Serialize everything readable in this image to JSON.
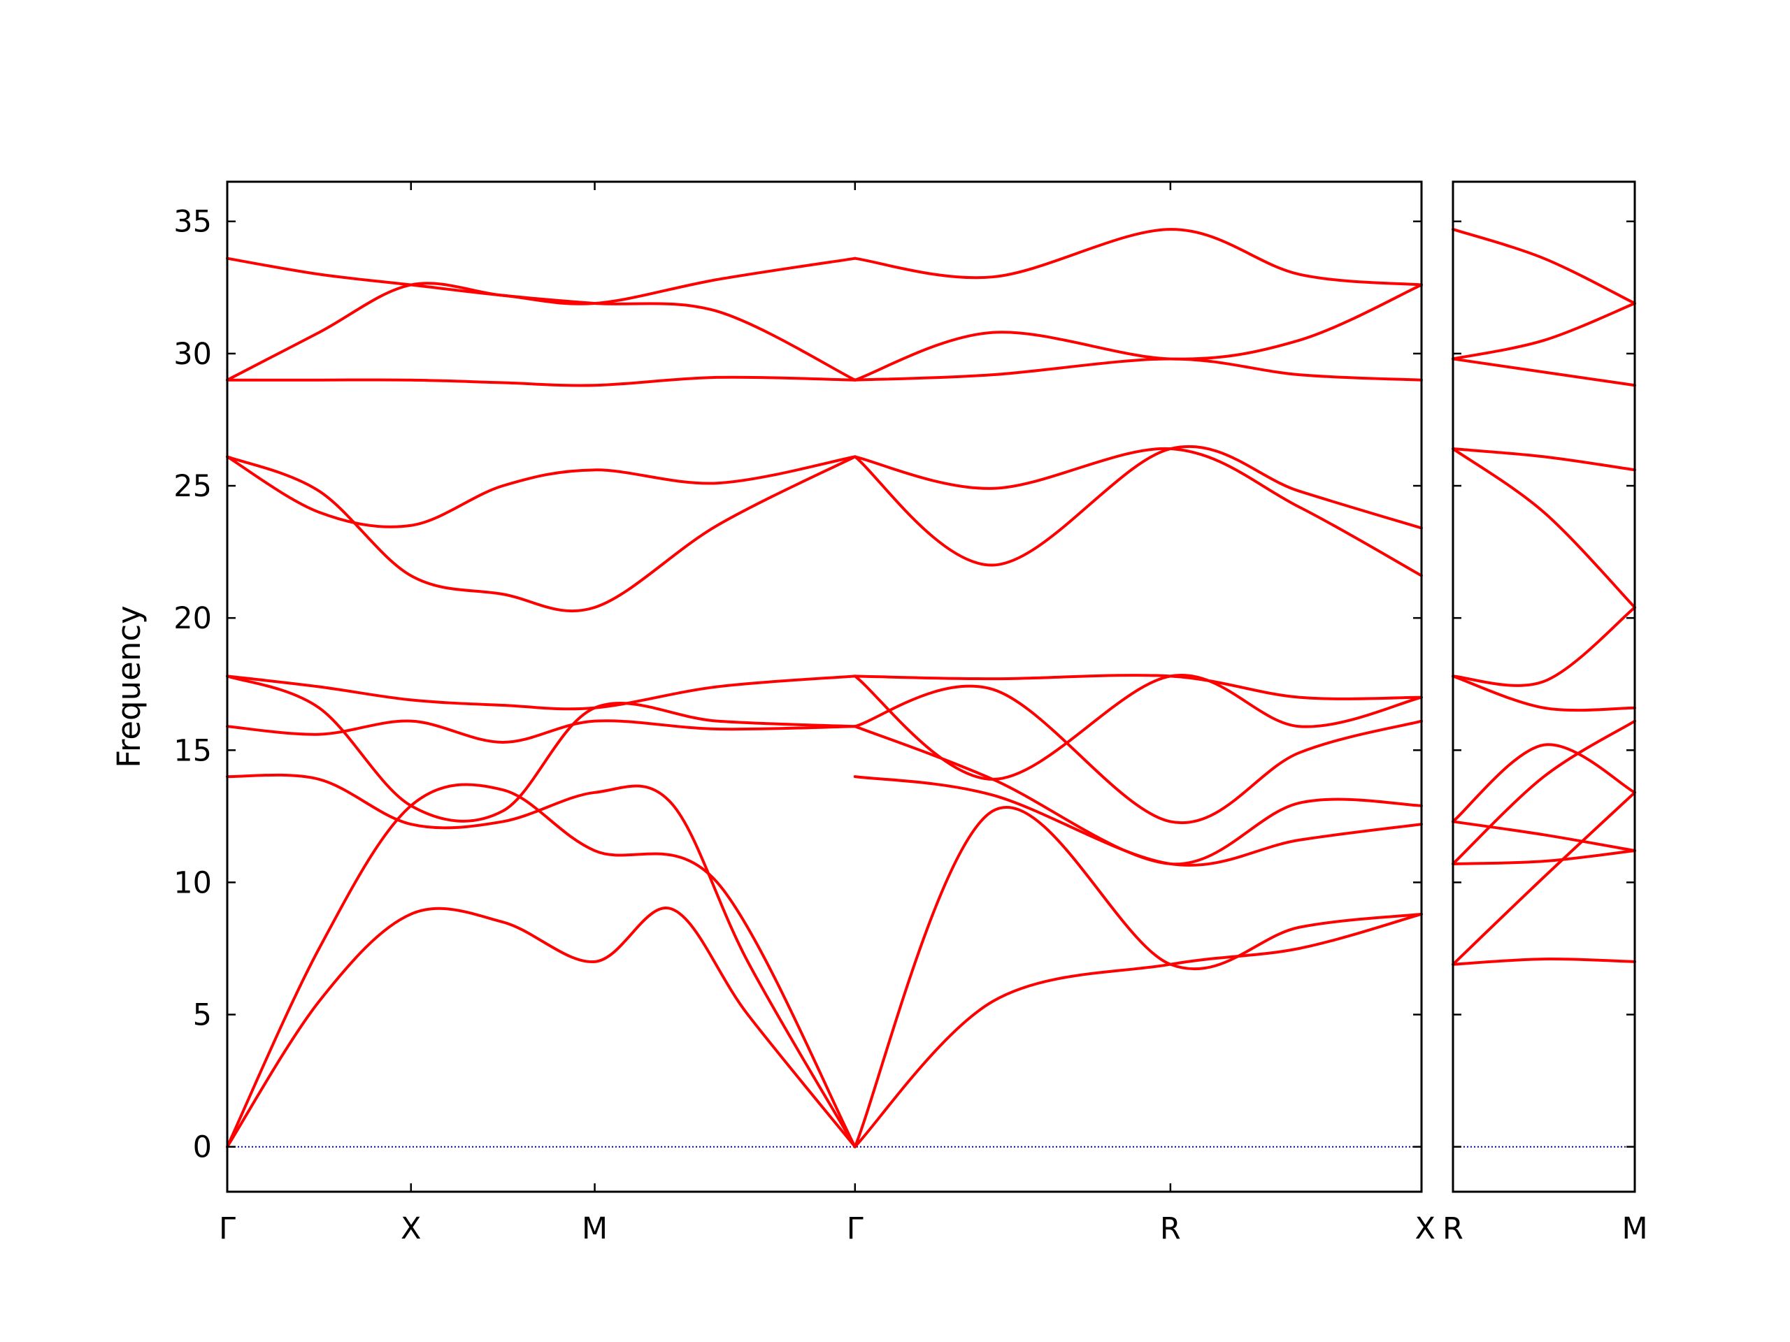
{
  "chart_data": {
    "type": "line",
    "title": "",
    "ylabel": "Frequency",
    "ylim": [
      -1.7,
      36.5
    ],
    "yticks": [
      0,
      5,
      10,
      15,
      20,
      25,
      30,
      35
    ],
    "colors": {
      "band": "#ff0000",
      "zero_line": "#0000aa"
    },
    "zero_line": true,
    "grid": false,
    "panels": [
      {
        "x_range": [
          0,
          3.9
        ],
        "special_points": [
          {
            "label": "Γ",
            "x": 0.0
          },
          {
            "label": "X",
            "x": 0.6
          },
          {
            "label": "M",
            "x": 1.2
          },
          {
            "label": "Γ",
            "x": 2.05
          },
          {
            "label": "R",
            "x": 3.08
          },
          {
            "label": "X",
            "x": 3.9
          }
        ],
        "series": [
          {
            "x": [
              0,
              0.3,
              0.6,
              0.9,
              1.2,
              1.45,
              1.7,
              2.05
            ],
            "values": [
              0,
              5.5,
              8.8,
              8.5,
              7.0,
              9.0,
              5.0,
              0
            ]
          },
          {
            "x": [
              0,
              0.3,
              0.6,
              0.9,
              1.2,
              1.6,
              2.05
            ],
            "values": [
              0,
              7.5,
              12.9,
              13.5,
              11.2,
              10.0,
              0
            ]
          },
          {
            "x": [
              0,
              0.3,
              0.6,
              0.9,
              1.2,
              1.45,
              1.7,
              2.05
            ],
            "values": [
              14.0,
              13.9,
              12.2,
              12.3,
              13.4,
              13.0,
              7.0,
              0
            ]
          },
          {
            "x": [
              0,
              0.3,
              0.6,
              0.9,
              1.2,
              1.6,
              2.05
            ],
            "values": [
              15.9,
              15.6,
              16.1,
              15.3,
              16.1,
              15.8,
              15.9
            ]
          },
          {
            "x": [
              0,
              0.3,
              0.6,
              0.9,
              1.2,
              1.6,
              2.05
            ],
            "values": [
              17.8,
              17.4,
              16.9,
              16.7,
              16.6,
              17.4,
              17.8
            ]
          },
          {
            "x": [
              0,
              0.3,
              0.6,
              0.9,
              1.2,
              1.6,
              2.05
            ],
            "values": [
              17.8,
              16.6,
              12.9,
              12.7,
              16.6,
              16.1,
              15.9
            ]
          },
          {
            "x": [
              0,
              0.3,
              0.6,
              0.9,
              1.2,
              1.6,
              2.05
            ],
            "values": [
              26.1,
              24.8,
              21.6,
              20.9,
              20.4,
              23.5,
              26.1
            ]
          },
          {
            "x": [
              0,
              0.3,
              0.6,
              0.9,
              1.2,
              1.6,
              2.05
            ],
            "values": [
              26.1,
              24.0,
              23.5,
              25.0,
              25.6,
              25.1,
              26.1
            ]
          },
          {
            "x": [
              0,
              0.3,
              0.6,
              0.9,
              1.2,
              1.6,
              2.05
            ],
            "values": [
              29.0,
              29.0,
              29.0,
              28.9,
              28.8,
              29.1,
              29.0
            ]
          },
          {
            "x": [
              0,
              0.3,
              0.6,
              0.9,
              1.2,
              1.6,
              2.05
            ],
            "values": [
              29.0,
              30.8,
              32.6,
              32.2,
              31.9,
              31.6,
              29.0
            ]
          },
          {
            "x": [
              0,
              0.3,
              0.6,
              0.9,
              1.2,
              1.6,
              2.05
            ],
            "values": [
              33.6,
              33.0,
              32.6,
              32.2,
              31.9,
              32.8,
              33.6
            ]
          },
          {
            "x": [
              2.05,
              2.5,
              3.08,
              3.5,
              3.9
            ],
            "values": [
              0,
              5.5,
              6.9,
              7.5,
              8.8
            ]
          },
          {
            "x": [
              2.05,
              2.5,
              3.08,
              3.5,
              3.9
            ],
            "values": [
              0,
              12.7,
              6.9,
              8.3,
              8.8
            ]
          },
          {
            "x": [
              2.05,
              2.5,
              3.08,
              3.5,
              3.9
            ],
            "values": [
              14.0,
              13.3,
              10.7,
              11.6,
              12.2
            ]
          },
          {
            "x": [
              2.05,
              2.5,
              3.08,
              3.5,
              3.9
            ],
            "values": [
              15.9,
              13.9,
              10.7,
              13.0,
              12.9
            ]
          },
          {
            "x": [
              2.05,
              2.5,
              3.08,
              3.5,
              3.9
            ],
            "values": [
              15.9,
              17.3,
              12.3,
              14.9,
              16.1
            ]
          },
          {
            "x": [
              2.05,
              2.5,
              3.08,
              3.5,
              3.9
            ],
            "values": [
              17.8,
              13.9,
              17.8,
              15.9,
              17.0
            ]
          },
          {
            "x": [
              2.05,
              2.5,
              3.08,
              3.5,
              3.9
            ],
            "values": [
              17.8,
              17.7,
              17.8,
              17.0,
              17.0
            ]
          },
          {
            "x": [
              2.05,
              2.5,
              3.08,
              3.5,
              3.9
            ],
            "values": [
              26.1,
              24.9,
              26.4,
              24.2,
              21.6
            ]
          },
          {
            "x": [
              2.05,
              2.5,
              3.08,
              3.5,
              3.9
            ],
            "values": [
              26.1,
              22.0,
              26.4,
              24.8,
              23.4
            ]
          },
          {
            "x": [
              2.05,
              2.5,
              3.08,
              3.5,
              3.9
            ],
            "values": [
              29.0,
              29.2,
              29.8,
              29.2,
              29.0
            ]
          },
          {
            "x": [
              2.05,
              2.5,
              3.08,
              3.5,
              3.9
            ],
            "values": [
              29.0,
              30.8,
              29.8,
              30.5,
              32.6
            ]
          },
          {
            "x": [
              2.05,
              2.5,
              3.08,
              3.5,
              3.9
            ],
            "values": [
              33.6,
              32.9,
              34.7,
              33.0,
              32.6
            ]
          }
        ]
      },
      {
        "x_range": [
          0,
          0.6
        ],
        "special_points": [
          {
            "label": "R",
            "x": 0.0
          },
          {
            "label": "M",
            "x": 0.6
          }
        ],
        "series": [
          {
            "x": [
              0,
              0.3,
              0.6
            ],
            "values": [
              6.9,
              7.1,
              7.0
            ]
          },
          {
            "x": [
              0,
              0.3,
              0.6
            ],
            "values": [
              6.9,
              10.2,
              13.4
            ]
          },
          {
            "x": [
              0,
              0.3,
              0.6
            ],
            "values": [
              10.7,
              10.8,
              11.2
            ]
          },
          {
            "x": [
              0,
              0.3,
              0.6
            ],
            "values": [
              10.7,
              14.0,
              16.1
            ]
          },
          {
            "x": [
              0,
              0.3,
              0.6
            ],
            "values": [
              12.3,
              11.8,
              11.2
            ]
          },
          {
            "x": [
              0,
              0.3,
              0.6
            ],
            "values": [
              12.3,
              15.2,
              13.4
            ]
          },
          {
            "x": [
              0,
              0.3,
              0.6
            ],
            "values": [
              17.8,
              16.6,
              16.6
            ]
          },
          {
            "x": [
              0,
              0.3,
              0.6
            ],
            "values": [
              17.8,
              17.6,
              20.4
            ]
          },
          {
            "x": [
              0,
              0.3,
              0.6
            ],
            "values": [
              26.4,
              24.0,
              20.4
            ]
          },
          {
            "x": [
              0,
              0.3,
              0.6
            ],
            "values": [
              26.4,
              26.1,
              25.6
            ]
          },
          {
            "x": [
              0,
              0.3,
              0.6
            ],
            "values": [
              29.8,
              29.3,
              28.8
            ]
          },
          {
            "x": [
              0,
              0.3,
              0.6
            ],
            "values": [
              29.8,
              30.5,
              31.9
            ]
          },
          {
            "x": [
              0,
              0.3,
              0.6
            ],
            "values": [
              34.7,
              33.6,
              31.9
            ]
          }
        ]
      }
    ]
  }
}
